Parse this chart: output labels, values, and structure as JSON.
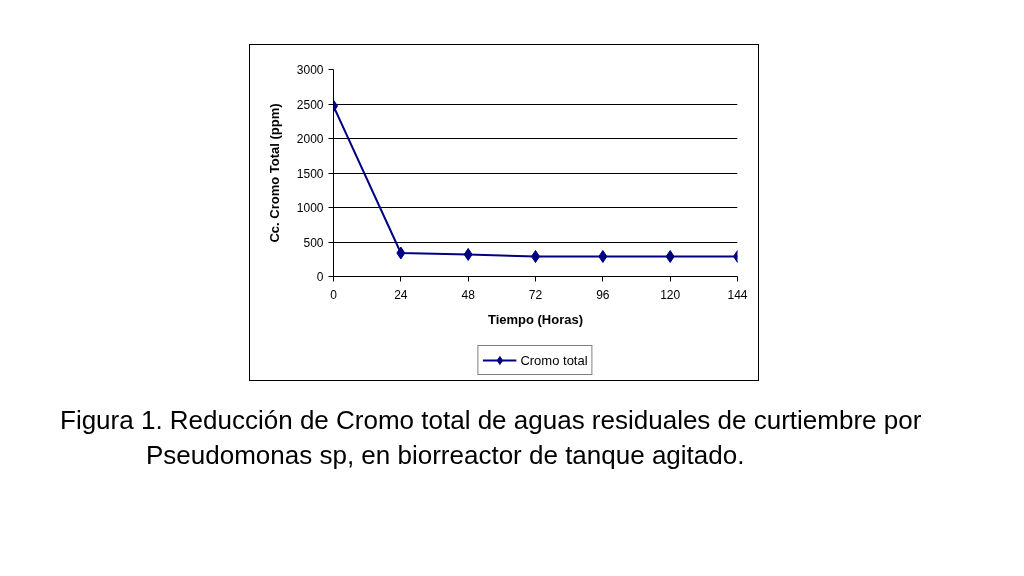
{
  "chart_data": {
    "type": "line",
    "xlabel": "Tiempo (Horas)",
    "ylabel": "Cc. Cromo Total (ppm)",
    "x": [
      0,
      24,
      48,
      72,
      96,
      120,
      144
    ],
    "series": [
      {
        "name": "Cromo total",
        "color": "#000080",
        "values": [
          2470,
          340,
          320,
          290,
          290,
          290,
          290
        ]
      }
    ],
    "xlim": [
      0,
      144
    ],
    "ylim": [
      0,
      3000
    ],
    "xticks": [
      0,
      24,
      48,
      72,
      96,
      120,
      144
    ],
    "yticks": [
      0,
      500,
      1000,
      1500,
      2000,
      2500,
      3000
    ],
    "grid": "y",
    "legend": "bottom",
    "marker": "diamond",
    "line_style": "solid",
    "annotations": [
      "Figura 1. Reducción de Cromo total de aguas residuales de curtiembre por Pseudomonas sp, en biorreactor de tanque agitado."
    ]
  }
}
